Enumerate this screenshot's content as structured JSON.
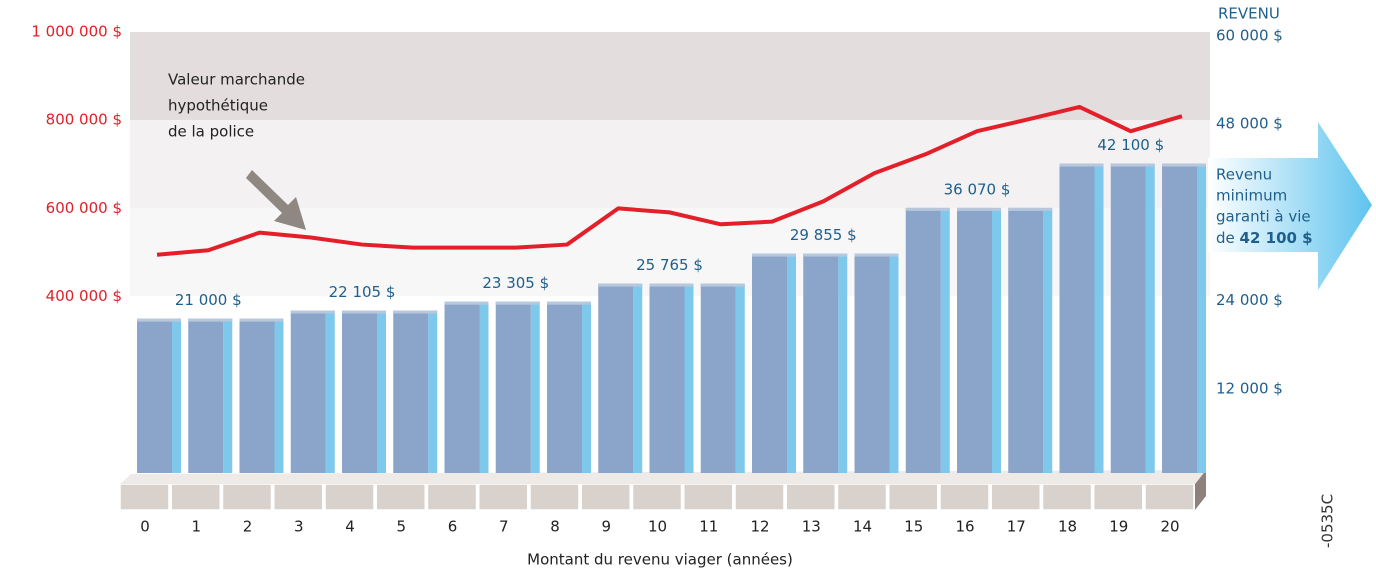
{
  "chart_data": {
    "type": "bar-line",
    "x_label": "Montant du revenu viager (années)",
    "categories": [
      0,
      1,
      2,
      3,
      4,
      5,
      6,
      7,
      8,
      9,
      10,
      11,
      12,
      13,
      14,
      15,
      16,
      17,
      18,
      19,
      20
    ],
    "series": [
      {
        "type": "bar",
        "axis": "y2",
        "color": "#8ba4c9",
        "values": [
          21000,
          21000,
          21000,
          22105,
          22105,
          22105,
          23305,
          23305,
          23305,
          25765,
          25765,
          25765,
          29855,
          29855,
          29855,
          36070,
          36070,
          36070,
          42100,
          42100,
          42100
        ],
        "value_labels": [
          null,
          "21 000 $",
          null,
          null,
          "22 105 $",
          null,
          null,
          "23 305 $",
          null,
          null,
          "25 765 $",
          null,
          null,
          "29 855 $",
          null,
          null,
          "36 070 $",
          null,
          null,
          "42 100 $",
          null
        ]
      },
      {
        "type": "line",
        "axis": "y",
        "color": "#e3202a",
        "values": [
          495000,
          505000,
          545000,
          534000,
          518000,
          511000,
          511000,
          511000,
          518000,
          600000,
          591000,
          564000,
          570000,
          616000,
          680000,
          723000,
          775000,
          802000,
          830000,
          775000,
          809000
        ]
      }
    ],
    "ylim": [
      0,
      1000000
    ],
    "yticks": [
      {
        "value": 400000,
        "label": "400 000 $"
      },
      {
        "value": 600000,
        "label": "600 000 $"
      },
      {
        "value": 800000,
        "label": "800 000 $"
      },
      {
        "value": 1000000,
        "label": "1 000 000 $"
      }
    ],
    "y2_label": "REVENU",
    "y2lim": [
      0,
      60000
    ],
    "y2ticks": [
      {
        "value": 12000,
        "label": "12 000 $"
      },
      {
        "value": 24000,
        "label": "24 000 $"
      },
      {
        "value": 48000,
        "label": "48 000 $"
      },
      {
        "value": 60000,
        "label": "60 000 $"
      }
    ],
    "line_annotation": [
      "Valeur marchande",
      "hypothétique",
      "de la police"
    ],
    "callout": [
      "Revenu",
      "minimum",
      "garanti à vie"
    ],
    "callout_prefix": "de",
    "callout_bold": "42 100 $",
    "code": "-0535C"
  }
}
